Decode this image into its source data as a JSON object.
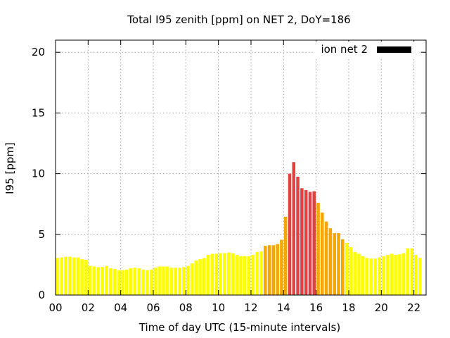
{
  "chart_data": {
    "type": "bar",
    "title": "Total I95 zenith [ppm] on NET 2, DoY=186",
    "xlabel": "Time of day UTC (15-minute intervals)",
    "ylabel": "I95 [ppm]",
    "xlim": [
      0,
      22.75
    ],
    "ylim": [
      0,
      21
    ],
    "x_ticks": [
      "00",
      "02",
      "04",
      "06",
      "08",
      "10",
      "12",
      "14",
      "16",
      "18",
      "20",
      "22"
    ],
    "y_ticks": [
      "0",
      "5",
      "10",
      "15",
      "20"
    ],
    "grid": true,
    "legend": {
      "label": "ion net 2",
      "color": "#000000",
      "position": "top-right"
    },
    "level_colors": {
      "low": "#ffff00",
      "medium": "#f5a600",
      "high": "#e04242"
    },
    "interval_hours": 0.25,
    "values": [
      3.05,
      3.1,
      3.15,
      3.15,
      3.1,
      3.1,
      2.95,
      2.9,
      2.4,
      2.35,
      2.3,
      2.3,
      2.4,
      2.2,
      2.15,
      2.05,
      2.05,
      2.1,
      2.2,
      2.25,
      2.2,
      2.1,
      2.05,
      2.1,
      2.25,
      2.35,
      2.35,
      2.35,
      2.25,
      2.25,
      2.25,
      2.3,
      2.4,
      2.6,
      2.85,
      2.95,
      3.05,
      3.3,
      3.4,
      3.4,
      3.45,
      3.45,
      3.5,
      3.45,
      3.3,
      3.2,
      3.2,
      3.2,
      3.3,
      3.55,
      3.6,
      4.05,
      4.1,
      4.1,
      4.2,
      4.55,
      6.45,
      10.0,
      10.95,
      9.75,
      8.8,
      8.65,
      8.5,
      8.55,
      7.6,
      6.8,
      6.05,
      5.5,
      5.1,
      5.1,
      4.6,
      4.3,
      3.95,
      3.55,
      3.4,
      3.2,
      3.05,
      3.0,
      3.0,
      3.1,
      3.2,
      3.3,
      3.4,
      3.3,
      3.35,
      3.45,
      3.85,
      3.85,
      3.3,
      3.05
    ],
    "levels": [
      "low",
      "low",
      "low",
      "low",
      "low",
      "low",
      "low",
      "low",
      "low",
      "low",
      "low",
      "low",
      "low",
      "low",
      "low",
      "low",
      "low",
      "low",
      "low",
      "low",
      "low",
      "low",
      "low",
      "low",
      "low",
      "low",
      "low",
      "low",
      "low",
      "low",
      "low",
      "low",
      "low",
      "low",
      "low",
      "low",
      "low",
      "low",
      "low",
      "low",
      "low",
      "low",
      "low",
      "low",
      "low",
      "low",
      "low",
      "low",
      "low",
      "low",
      "low",
      "medium",
      "medium",
      "medium",
      "medium",
      "medium",
      "medium",
      "high",
      "high",
      "high",
      "high",
      "high",
      "high",
      "high",
      "medium",
      "medium",
      "medium",
      "medium",
      "medium",
      "medium",
      "medium",
      "low",
      "low",
      "low",
      "low",
      "low",
      "low",
      "low",
      "low",
      "low",
      "low",
      "low",
      "low",
      "low",
      "low",
      "low",
      "low",
      "low",
      "low",
      "low"
    ]
  }
}
